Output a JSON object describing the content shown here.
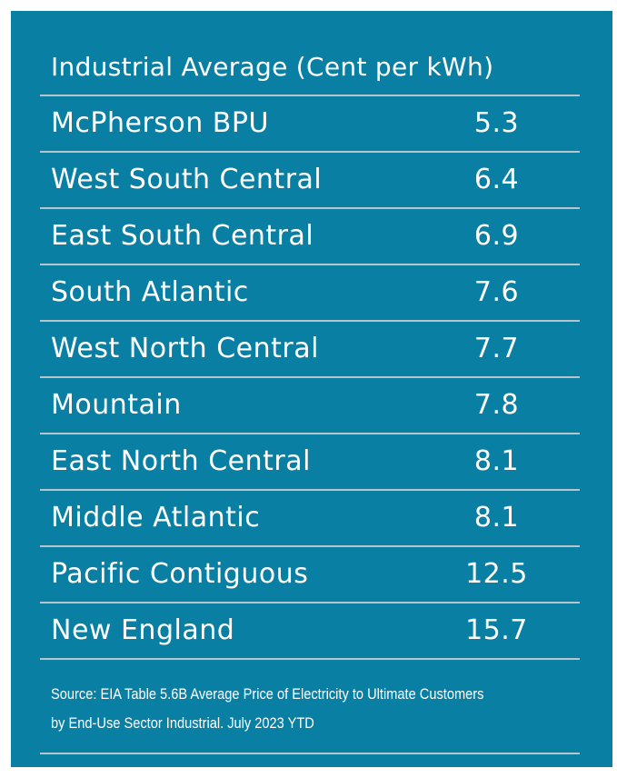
{
  "table": {
    "header": "Industrial Average (Cent per kWh)",
    "rows": [
      {
        "region": "McPherson BPU",
        "value": "5.3"
      },
      {
        "region": "West South Central",
        "value": "6.4"
      },
      {
        "region": "East South Central",
        "value": "6.9"
      },
      {
        "region": "South Atlantic",
        "value": "7.6"
      },
      {
        "region": "West North Central",
        "value": "7.7"
      },
      {
        "region": "Mountain",
        "value": "7.8"
      },
      {
        "region": "East North Central",
        "value": "8.1"
      },
      {
        "region": "Middle Atlantic",
        "value": "8.1"
      },
      {
        "region": "Pacific Contiguous",
        "value": "12.5"
      },
      {
        "region": "New England",
        "value": "15.7"
      }
    ]
  },
  "source": {
    "line1": "Source: EIA Table 5.6B Average Price of Electricity to Ultimate Customers",
    "line2": "by End-Use Sector Industrial. July 2023 YTD"
  },
  "colors": {
    "panel": "#0a7fa4",
    "rule": "#b8c4cc",
    "text": "#ffffff"
  }
}
